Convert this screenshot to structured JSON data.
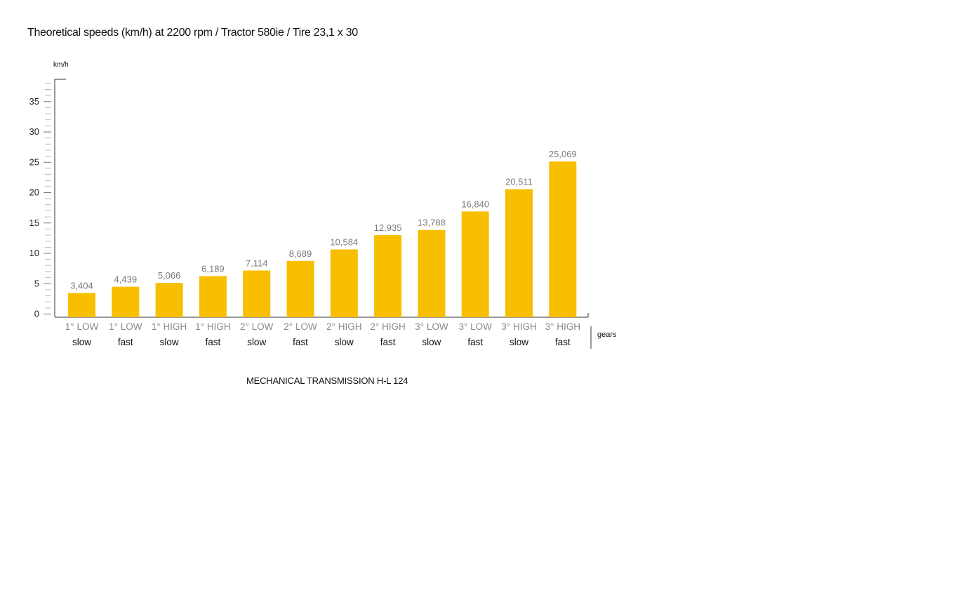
{
  "chart_data": {
    "type": "bar",
    "title": "Theoretical speeds (km/h) at 2200 rpm / Tractor 580ie / Tire 23,1 x 30",
    "ylabel": "km/h",
    "xlabel": "gears",
    "caption": "MECHANICAL TRANSMISSION H-L 124",
    "ylim": [
      0,
      38
    ],
    "yticks": [
      0,
      5,
      10,
      15,
      20,
      25,
      30,
      35
    ],
    "grid": false,
    "bar_color": "#F8BE00",
    "categories": [
      {
        "line1": "1° LOW",
        "line2": "slow"
      },
      {
        "line1": "1° LOW",
        "line2": "fast"
      },
      {
        "line1": "1° HIGH",
        "line2": "slow"
      },
      {
        "line1": "1° HIGH",
        "line2": "fast"
      },
      {
        "line1": "2° LOW",
        "line2": "slow"
      },
      {
        "line1": "2° LOW",
        "line2": "fast"
      },
      {
        "line1": "2° HIGH",
        "line2": "slow"
      },
      {
        "line1": "2° HIGH",
        "line2": "fast"
      },
      {
        "line1": "3° LOW",
        "line2": "slow"
      },
      {
        "line1": "3° LOW",
        "line2": "fast"
      },
      {
        "line1": "3° HIGH",
        "line2": "slow"
      },
      {
        "line1": "3° HIGH",
        "line2": "fast"
      }
    ],
    "values": [
      3.404,
      4.439,
      5.066,
      6.189,
      7.114,
      8.689,
      10.584,
      12.935,
      13.788,
      16.84,
      20.511,
      25.069
    ],
    "value_labels": [
      "3,404",
      "4,439",
      "5,066",
      "6,189",
      "7,114",
      "8,689",
      "10,584",
      "12,935",
      "13,788",
      "16,840",
      "20,511",
      "25,069"
    ]
  }
}
